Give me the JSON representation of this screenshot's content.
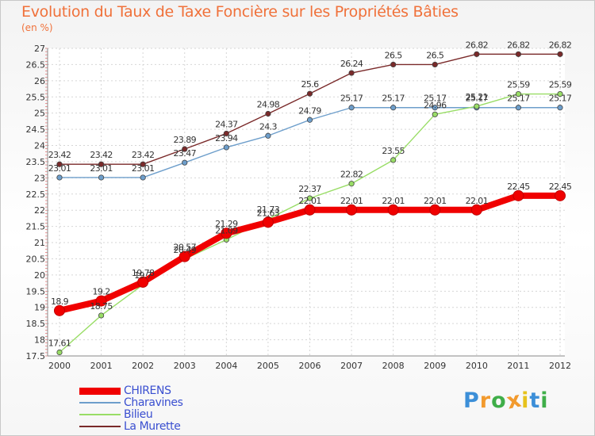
{
  "chart_data": {
    "type": "line",
    "title": "Evolution du Taux de Taxe Foncière sur les Propriétés Bâties",
    "ylabel": "(en %)",
    "xlabel": "",
    "categories": [
      "2000",
      "2001",
      "2002",
      "2003",
      "2004",
      "2005",
      "2006",
      "2007",
      "2008",
      "2009",
      "2010",
      "2011",
      "2012"
    ],
    "yticks": [
      "17.5",
      "18",
      "18.5",
      "19",
      "19.5",
      "20",
      "20.5",
      "21",
      "21.5",
      "22",
      "22.5",
      "23",
      "23.5",
      "24",
      "24.5",
      "25",
      "25.5",
      "26",
      "26.5",
      "27"
    ],
    "ylim": [
      17.5,
      27
    ],
    "grid": true,
    "legend_position": "bottom-left",
    "series": [
      {
        "name": "CHIRENS",
        "color": "#f00000",
        "values": [
          18.9,
          19.2,
          19.78,
          20.57,
          21.29,
          21.63,
          22.01,
          22.01,
          22.01,
          22.01,
          22.01,
          22.45,
          22.45
        ],
        "labels": [
          "18.9",
          "19.2",
          "19.78",
          "20.57",
          "21.29",
          "21.63",
          "22.01",
          "22.01",
          "22.01",
          "22.01",
          "22.01",
          "22.45",
          "22.45"
        ]
      },
      {
        "name": "Charavines",
        "color": "#6d9ecb",
        "values": [
          23.01,
          23.01,
          23.01,
          23.47,
          23.94,
          24.3,
          24.79,
          25.17,
          25.17,
          25.17,
          25.17,
          25.17,
          25.17
        ],
        "labels": [
          "23.01",
          "23.01",
          "23.01",
          "23.47",
          "23.94",
          "24.3",
          "24.79",
          "25.17",
          "25.17",
          "25.17",
          "25.17",
          "25.17",
          "25.17"
        ]
      },
      {
        "name": "Bilieu",
        "color": "#99dd66",
        "values": [
          17.61,
          18.75,
          19.7,
          20.49,
          21.09,
          21.73,
          22.37,
          22.82,
          23.55,
          24.96,
          25.21,
          25.59,
          25.59
        ],
        "labels": [
          "17.61",
          "18.75",
          "19.7",
          "20.49",
          "21.09",
          "21.73",
          "22.37",
          "22.82",
          "23.55",
          "24.96",
          "25.21",
          "25.59",
          "25.59"
        ]
      },
      {
        "name": "La Murette",
        "color": "#7a2a2a",
        "values": [
          23.42,
          23.42,
          23.42,
          23.89,
          24.37,
          24.98,
          25.6,
          26.24,
          26.5,
          26.5,
          26.82,
          26.82,
          26.82
        ],
        "labels": [
          "23.42",
          "23.42",
          "23.42",
          "23.89",
          "24.37",
          "24.98",
          "25.6",
          "26.24",
          "26.5",
          "26.5",
          "26.82",
          "26.82",
          "26.82"
        ]
      }
    ]
  },
  "brand": {
    "letters": [
      "P",
      "r",
      "o",
      "x",
      "i",
      "t",
      "i"
    ],
    "colors": [
      "#3c8fd8",
      "#f29a2e",
      "#3fae49",
      "#f29a2e",
      "#e6c21c",
      "#3c8fd8",
      "#3fae49"
    ]
  }
}
